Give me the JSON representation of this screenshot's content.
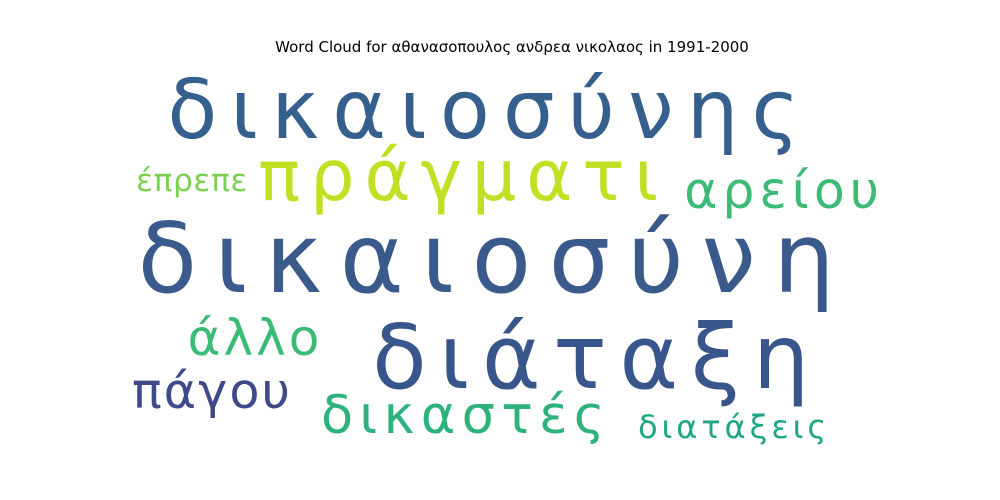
{
  "chart_data": {
    "type": "wordcloud",
    "title": "Word Cloud for αθανασοπουλος ανδρεα νικολαος in 1991-2000",
    "words": [
      {
        "text": "δικαιοσύνη",
        "weight": 1.0,
        "color": "#3b5a8c"
      },
      {
        "text": "δικαιοσύνης",
        "weight": 0.75,
        "color": "#35608d"
      },
      {
        "text": "διάταξη",
        "weight": 0.7,
        "color": "#39568c"
      },
      {
        "text": "πράγματι",
        "weight": 0.62,
        "color": "#c2df23"
      },
      {
        "text": "δικαστές",
        "weight": 0.4,
        "color": "#2db27d"
      },
      {
        "text": "αρείου",
        "weight": 0.33,
        "color": "#3bbb75"
      },
      {
        "text": "άλλο",
        "weight": 0.32,
        "color": "#3bbb75"
      },
      {
        "text": "πάγου",
        "weight": 0.3,
        "color": "#3e4a89"
      },
      {
        "text": "διατάξεις",
        "weight": 0.25,
        "color": "#21a685"
      },
      {
        "text": "έπρεπε",
        "weight": 0.22,
        "color": "#7ad151"
      }
    ]
  }
}
